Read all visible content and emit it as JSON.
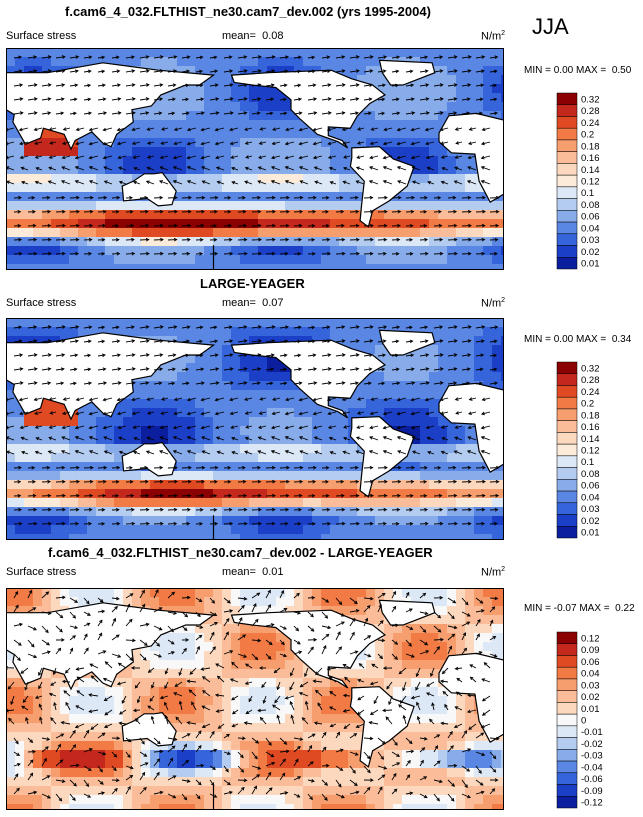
{
  "season": "JJA",
  "units_base": "N/m",
  "units_exp": "2",
  "chart_data": [
    {
      "type": "heatmap",
      "title": "f.cam6_4_032.FLTHIST_ne30.cam7_dev.002 (yrs 1995-2004)",
      "variable": "Surface stress",
      "mean_label": "mean=",
      "mean": "0.08",
      "min_label": "MIN =",
      "min": "0.00",
      "max_label": "MAX =",
      "max": "0.50",
      "levels": [
        "0.32",
        "0.28",
        "0.24",
        "0.2",
        "0.18",
        "0.16",
        "0.14",
        "0.12",
        "0.1",
        "0.08",
        "0.06",
        "0.04",
        "0.03",
        "0.02",
        "0.01"
      ],
      "colors": [
        "#8b0000",
        "#c4281c",
        "#e04a23",
        "#f27a45",
        "#f79e6f",
        "#fbbd99",
        "#fcd8bf",
        "#fdebd9",
        "#dde8f7",
        "#b3ccf0",
        "#88acea",
        "#5a87e3",
        "#3564db",
        "#1c3fc8",
        "#0a1e9e"
      ],
      "vectors": "surface wind stress vectors"
    },
    {
      "type": "heatmap",
      "title": "LARGE-YEAGER",
      "variable": "Surface stress",
      "mean_label": "mean=",
      "mean": "0.07",
      "min_label": "MIN =",
      "min": "0.00",
      "max_label": "MAX =",
      "max": "0.34",
      "levels": [
        "0.32",
        "0.28",
        "0.24",
        "0.2",
        "0.18",
        "0.16",
        "0.14",
        "0.12",
        "0.1",
        "0.08",
        "0.06",
        "0.04",
        "0.03",
        "0.02",
        "0.01"
      ],
      "colors": [
        "#8b0000",
        "#c4281c",
        "#e04a23",
        "#f27a45",
        "#f79e6f",
        "#fbbd99",
        "#fcd8bf",
        "#fdebd9",
        "#dde8f7",
        "#b3ccf0",
        "#88acea",
        "#5a87e3",
        "#3564db",
        "#1c3fc8",
        "#0a1e9e"
      ],
      "vectors": "surface wind stress vectors"
    },
    {
      "type": "heatmap",
      "title": "f.cam6_4_032.FLTHIST_ne30.cam7_dev.002 - LARGE-YEAGER",
      "variable": "Surface stress",
      "mean_label": "mean=",
      "mean": "0.01",
      "min_label": "MIN =",
      "min": "-0.07",
      "max_label": "MAX =",
      "max": "0.22",
      "levels": [
        "0.12",
        "0.09",
        "0.06",
        "0.04",
        "0.03",
        "0.02",
        "0.01",
        "0",
        "-0.01",
        "-0.02",
        "-0.03",
        "-0.04",
        "-0.06",
        "-0.09",
        "-0.12"
      ],
      "colors": [
        "#8b0000",
        "#c4281c",
        "#e04a23",
        "#f27a45",
        "#f79e6f",
        "#fbbd99",
        "#fcd8bf",
        "#f8f8f8",
        "#dde8f7",
        "#b3ccf0",
        "#88acea",
        "#5a87e3",
        "#3564db",
        "#1c3fc8",
        "#0a1e9e"
      ],
      "vectors": "surface wind stress difference vectors"
    }
  ]
}
